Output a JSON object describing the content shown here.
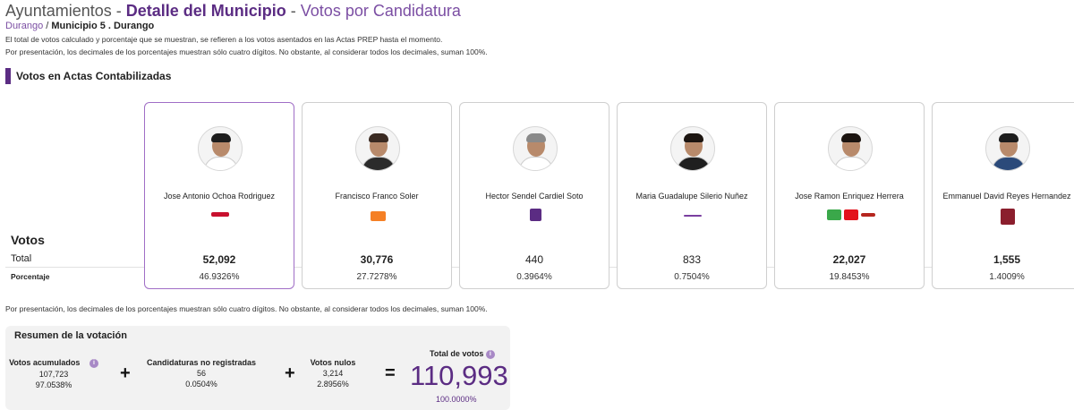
{
  "header": {
    "section": "Ayuntamientos",
    "separator1": " - ",
    "detail": "Detalle del Municipio",
    "separator2": " - ",
    "subtitle": "Votos por Candidatura"
  },
  "breadcrumb": {
    "state": "Durango",
    "separator": " / ",
    "current": "Municipio 5 . Durango"
  },
  "notes": {
    "line1": "El total de votos calculado y porcentaje que se muestran, se refieren a los votos asentados en las Actas PREP hasta el momento.",
    "line2": "Por presentación, los decimales de los porcentajes muestran sólo cuatro dígitos. No obstante, al considerar todos los decimales, suman 100%.",
    "line3": "Por presentación, los decimales de los porcentajes muestran sólo cuatro dígitos. No obstante, al considerar todos los decimales, suman 100%."
  },
  "section_title": "Votos en Actas Contabilizadas",
  "row_labels": {
    "votos": "Votos",
    "total": "Total",
    "porcentaje": "Porcentaje"
  },
  "candidates": [
    {
      "name": "Jose Antonio Ochoa Rodriguez",
      "votes": "52,092",
      "percent": "46.9326%",
      "party_logo": "coalition-red-logo",
      "winner": true,
      "colors": [
        "#c8102e"
      ]
    },
    {
      "name": "Francisco Franco Soler",
      "votes": "30,776",
      "percent": "27.7278%",
      "party_logo": "movimiento-ciudadano-logo",
      "winner": false,
      "colors": [
        "#f58025"
      ]
    },
    {
      "name": "Hector Sendel Cardiel Soto",
      "votes": "440",
      "percent": "0.3964%",
      "party_logo": "pes-logo",
      "winner": false,
      "colors": [
        "#5b2c83"
      ]
    },
    {
      "name": "Maria Guadalupe Silerio Nuñez",
      "votes": "833",
      "percent": "0.7504%",
      "party_logo": "coalition-purple-logo",
      "winner": false,
      "colors": [
        "#7a3fa0"
      ]
    },
    {
      "name": "Jose Ramon Enriquez Herrera",
      "votes": "22,027",
      "percent": "19.8453%",
      "party_logo": "pvem-pt-morena-logos",
      "winner": false,
      "colors": [
        "#3aa84a",
        "#e3131b",
        "#b5261e"
      ]
    },
    {
      "name": "Emmanuel David Reyes Hernandez",
      "votes": "1,555",
      "percent": "1.4009%",
      "party_logo": "todos-logo",
      "winner": false,
      "colors": [
        "#8b1e2d"
      ]
    }
  ],
  "resumen": {
    "title": "Resumen de la votación",
    "acumulados": {
      "label": "Votos acumulados",
      "votes": "107,723",
      "percent": "97.0538%"
    },
    "no_registradas": {
      "label": "Candidaturas no registradas",
      "votes": "56",
      "percent": "0.0504%"
    },
    "nulos": {
      "label": "Votos nulos",
      "votes": "3,214",
      "percent": "2.8956%"
    },
    "total": {
      "label": "Total de votos",
      "votes": "110,993",
      "percent": "100.0000%"
    },
    "plus": "+",
    "equals": "=",
    "info": "i"
  },
  "theme": {
    "accent": "#5b2c83",
    "accent_light": "#a06ec6",
    "panel_bg": "#f2f2f2"
  }
}
